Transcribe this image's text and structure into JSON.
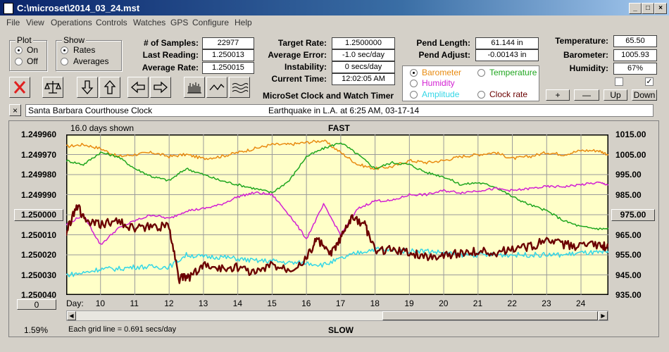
{
  "window": {
    "title": "C:\\microset\\2014_03_24.mst"
  },
  "menu": [
    "File",
    "View",
    "Operations",
    "Controls",
    "Watches",
    "GPS",
    "Configure",
    "Help"
  ],
  "plot": {
    "title": "Plot",
    "on": "On",
    "off": "Off",
    "selected": "On"
  },
  "show": {
    "title": "Show",
    "rates": "Rates",
    "averages": "Averages",
    "selected": "Rates"
  },
  "stats": {
    "samples_label": "# of Samples:",
    "samples": "22977",
    "last_label": "Last Reading:",
    "last": "1.250013",
    "avg_label": "Average Rate:",
    "avg": "1.250015",
    "target_label": "Target Rate:",
    "target": "1.2500000",
    "err_label": "Average Error:",
    "err": "-1.0 sec/day",
    "instab_label": "Instability:",
    "instab": "0 secs/day",
    "time_label": "Current Time:",
    "time": "12:02:05 AM",
    "plen_label": "Pend Length:",
    "plen": "61.144 in",
    "padj_label": "Pend Adjust:",
    "padj": "-0.00143 in",
    "temp_label": "Temperature:",
    "temp": "65.50",
    "baro_label": "Barometer:",
    "baro": "1005.93",
    "hum_label": "Humidity:",
    "hum": "67%"
  },
  "app_title": "MicroSet Clock and Watch Timer",
  "sensors": {
    "barometer": "Barometer",
    "temperature": "Temperature",
    "humidity": "Humidity",
    "amplitude": "Amplitude",
    "clock_rate": "Clock rate",
    "selected": "Barometer"
  },
  "sensor_buttons": {
    "plus": "+",
    "minus": "—",
    "up": "Up",
    "down": "Down"
  },
  "info": {
    "close": "×",
    "clock_name": "Santa Barbara Courthouse Clock",
    "note": "Earthquake in L.A. at 6:25 AM, 03-17-14"
  },
  "colors": {
    "barometer": "#e88a10",
    "temperature": "#1fa61f",
    "humidity": "#d21fd2",
    "amplitude": "#33d6e6",
    "rate": "#6b0000",
    "plot_bg": "#ffffc8"
  },
  "chart_data": {
    "type": "line",
    "days_shown": "16.0 days shown",
    "top_label": "FAST",
    "bottom_label": "SLOW",
    "grid_note": "Each grid line = 0.691 secs/day",
    "percent": "1.59%",
    "left_ticks": [
      "1.249960",
      "1.249970",
      "1.249980",
      "1.249990",
      "1.250000",
      "1.250010",
      "1.250020",
      "1.250030",
      "1.250040"
    ],
    "right_ticks": [
      "1015.00",
      "1005.00",
      "995.00",
      "985.00",
      "975.00",
      "965.00",
      "955.00",
      "945.00",
      "935.00"
    ],
    "left_button": "1.250000",
    "right_button": "975.00",
    "zero_button": "0",
    "x_label": "Day:",
    "x": [
      10,
      11,
      12,
      13,
      14,
      15,
      16,
      17,
      18,
      19,
      20,
      21,
      22,
      23,
      24
    ],
    "left_ylim": [
      1.24996,
      1.25004
    ],
    "right_ylim": [
      935,
      1015
    ],
    "x_range": [
      9,
      24.8
    ],
    "series": [
      {
        "name": "Barometer",
        "axis": "right",
        "x": [
          9,
          9.5,
          10,
          10.5,
          11,
          11.5,
          12,
          12.5,
          13,
          13.5,
          14,
          14.5,
          15,
          15.5,
          16,
          16.5,
          17,
          17.5,
          18,
          18.5,
          19,
          19.5,
          20,
          20.5,
          21,
          21.5,
          22,
          22.5,
          23,
          23.5,
          24,
          24.5,
          24.8
        ],
        "y": [
          1009,
          1010,
          1008,
          1004,
          1005,
          1006,
          1004,
          1005,
          1003,
          1004,
          1006,
          1008,
          1010,
          1010,
          1011,
          1012,
          1006,
          1000,
          998,
          999,
          1002,
          1001,
          1002,
          1004,
          1005,
          1006,
          1003,
          1004,
          1006,
          1005,
          1007,
          1007,
          1005
        ]
      },
      {
        "name": "Temperature",
        "axis": "right",
        "x": [
          9,
          9.5,
          10,
          10.5,
          11,
          11.5,
          12,
          12.5,
          13,
          13.5,
          14,
          14.5,
          15,
          15.5,
          16,
          16.5,
          17,
          17.5,
          18,
          18.5,
          19,
          19.5,
          20,
          20.5,
          21,
          21.5,
          22,
          22.5,
          23,
          23.5,
          24,
          24.5,
          24.8
        ],
        "y": [
          1002,
          1000,
          1006,
          1004,
          998,
          994,
          992,
          998,
          995,
          992,
          990,
          988,
          986,
          992,
          1004,
          1008,
          1011,
          1005,
          998,
          1001,
          1000,
          996,
          994,
          990,
          991,
          989,
          984,
          980,
          977,
          972,
          969,
          968,
          968
        ]
      },
      {
        "name": "Humidity",
        "axis": "right",
        "x": [
          9,
          9.5,
          10,
          10.5,
          11,
          11.5,
          12,
          12.5,
          13,
          13.5,
          14,
          14.5,
          15,
          15.5,
          16,
          16.5,
          17,
          17.5,
          18,
          18.5,
          19,
          19.5,
          20,
          20.5,
          21,
          21.5,
          22,
          22.5,
          23,
          23.5,
          24,
          24.5,
          24.8
        ],
        "y": [
          970,
          975,
          960,
          968,
          972,
          975,
          973,
          977,
          978,
          980,
          984,
          986,
          985,
          975,
          963,
          980,
          965,
          978,
          982,
          982,
          985,
          985,
          987,
          986,
          987,
          988,
          987,
          988,
          989,
          989,
          990,
          991,
          990
        ]
      },
      {
        "name": "Amplitude",
        "axis": "right",
        "x": [
          9,
          9.5,
          10,
          10.5,
          11,
          11.5,
          12,
          12.5,
          13,
          13.5,
          14,
          14.5,
          15,
          15.5,
          16,
          16.5,
          17,
          17.5,
          18,
          18.5,
          19,
          19.5,
          20,
          20.5,
          21,
          21.5,
          22,
          22.5,
          23,
          23.5,
          24,
          24.5,
          24.8
        ],
        "y": [
          945,
          946,
          948,
          948,
          949,
          949,
          949,
          955,
          954,
          954,
          953,
          952,
          952,
          951,
          951,
          950,
          953,
          956,
          958,
          957,
          957,
          957,
          956,
          955,
          955,
          955,
          955,
          955,
          955,
          955,
          956,
          956,
          956
        ]
      },
      {
        "name": "Clock rate",
        "axis": "left",
        "x": [
          9,
          9.3,
          9.6,
          10,
          10.5,
          11,
          11.5,
          12,
          12.3,
          12.6,
          13,
          13.5,
          14,
          14.5,
          15,
          15.5,
          16,
          16.3,
          16.7,
          17,
          17.3,
          17.7,
          18,
          18.5,
          19,
          19.5,
          20,
          20.5,
          21,
          21.5,
          22,
          22.5,
          23,
          23.5,
          24,
          24.5,
          24.8
        ],
        "y": [
          1.250009,
          1.249995,
          1.250004,
          1.250005,
          1.250003,
          1.250007,
          1.250006,
          1.250006,
          1.250032,
          1.250031,
          1.250025,
          1.250027,
          1.250026,
          1.250029,
          1.250025,
          1.250027,
          1.250022,
          1.250012,
          1.25002,
          1.250012,
          1.250002,
          1.250005,
          1.250018,
          1.250017,
          1.250019,
          1.250021,
          1.25002,
          1.250019,
          1.250018,
          1.250019,
          1.250017,
          1.250016,
          1.250013,
          1.250015,
          1.250016,
          1.250015,
          1.250016
        ]
      }
    ]
  }
}
